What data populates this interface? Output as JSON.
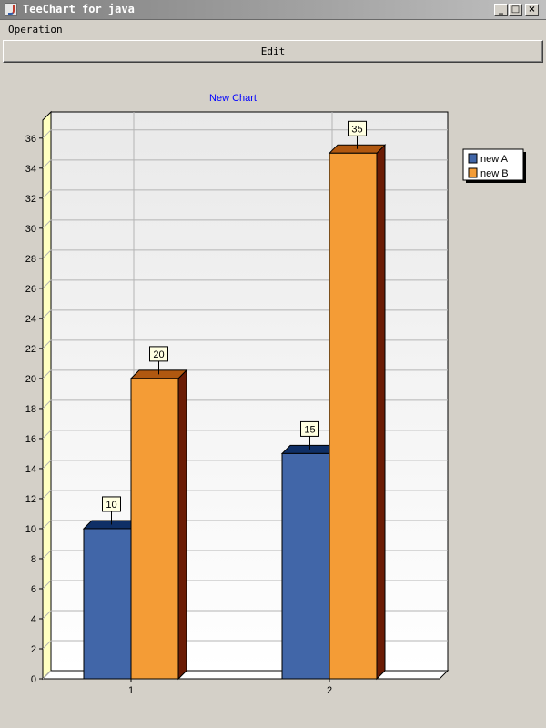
{
  "window": {
    "title": "TeeChart for java"
  },
  "menu": {
    "items": [
      {
        "label": "Operation"
      }
    ]
  },
  "toolbar": {
    "edit_label": "Edit"
  },
  "chart_data": {
    "type": "bar",
    "title": "New Chart",
    "categories": [
      "1",
      "2"
    ],
    "series": [
      {
        "name": "new A",
        "values": [
          10,
          15
        ],
        "color": "#4166a8",
        "top_color": "#0f2f66",
        "side_color": "#2a4a86"
      },
      {
        "name": "new B",
        "values": [
          20,
          35
        ],
        "color": "#f49c36",
        "top_color": "#b05810",
        "side_color": "#6b1c05"
      }
    ],
    "ylim": [
      0,
      36
    ],
    "yticks": [
      0,
      2,
      4,
      6,
      8,
      10,
      12,
      14,
      16,
      18,
      20,
      22,
      24,
      26,
      28,
      30,
      32,
      34,
      36
    ],
    "grid": true,
    "legend": "right",
    "data_labels": true,
    "title_color": "#0000ff"
  }
}
